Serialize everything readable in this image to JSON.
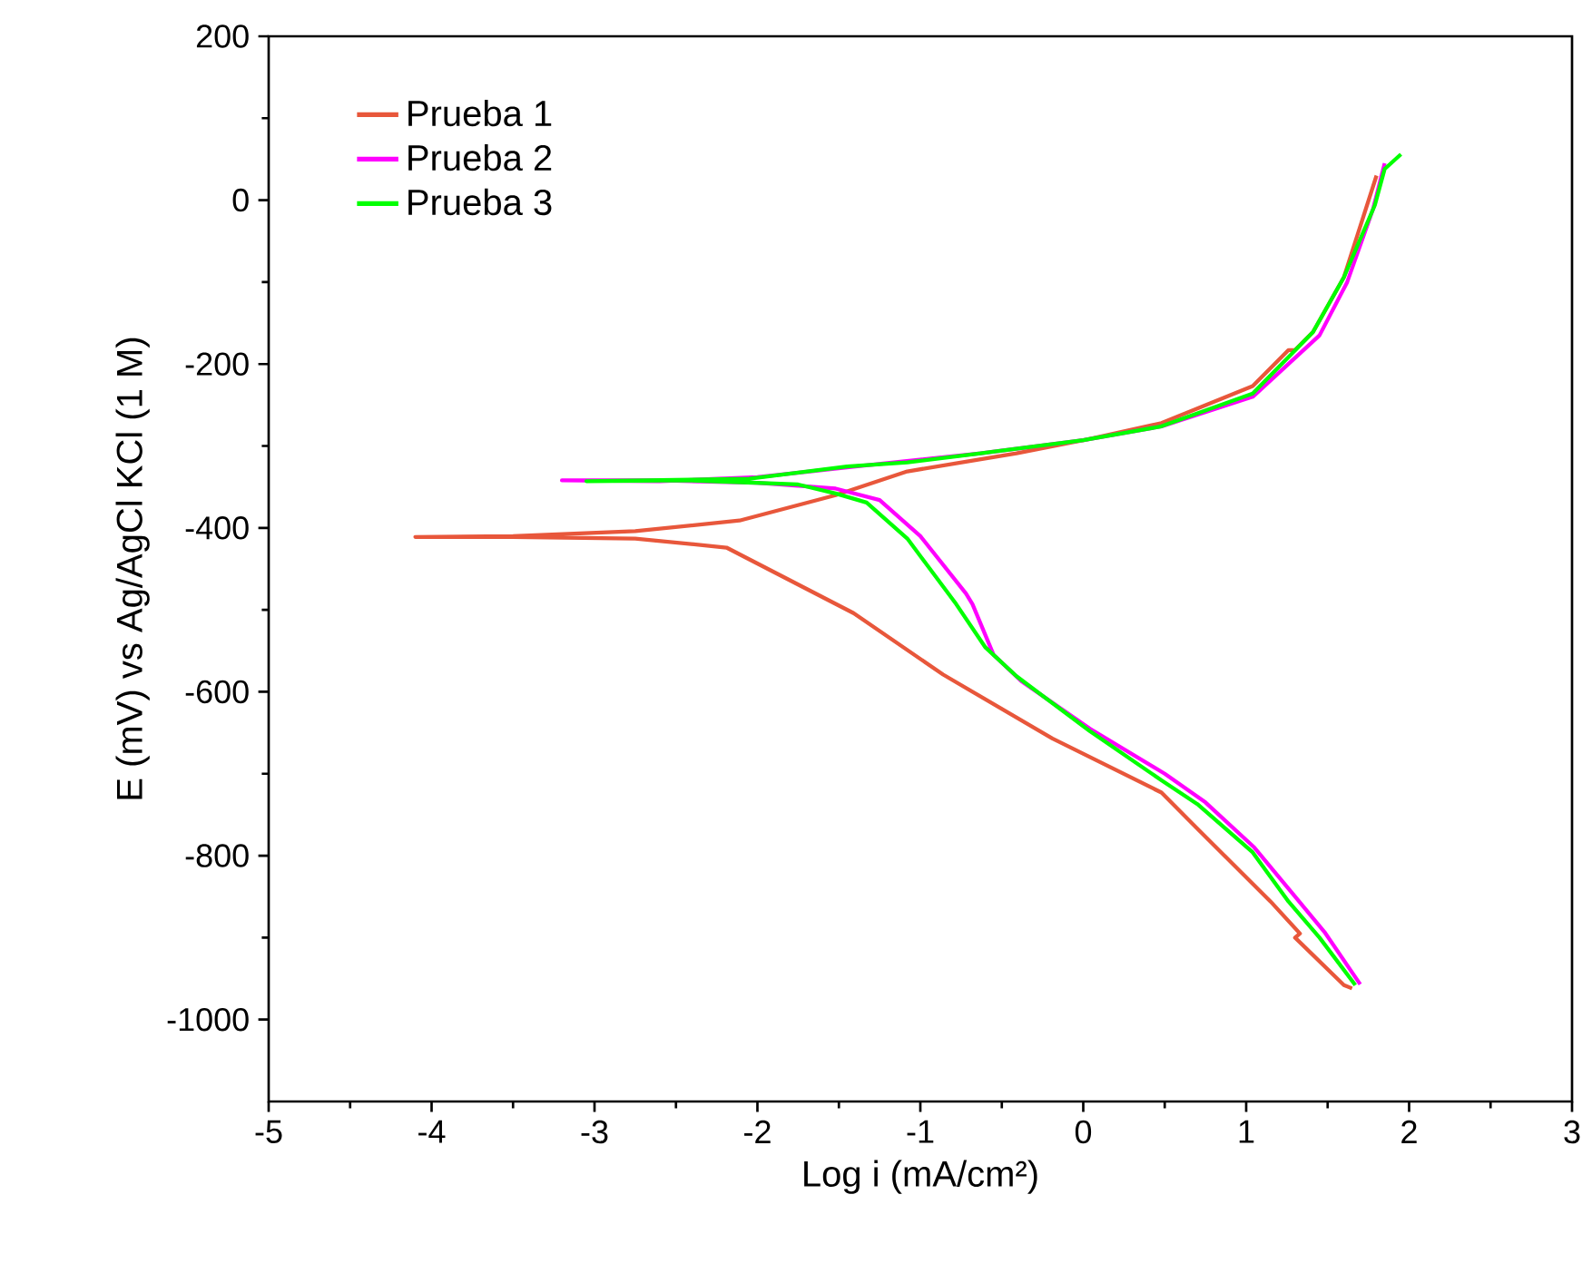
{
  "chart_data": {
    "type": "line",
    "xlabel": "Log i (mA/cm²)",
    "ylabel": "E (mV) vs Ag/AgCl KCl (1 M)",
    "xlim": [
      -5,
      3
    ],
    "ylim": [
      -1100,
      200
    ],
    "xticks": [
      -5,
      -4,
      -3,
      -2,
      -1,
      0,
      1,
      2,
      3
    ],
    "yticks": [
      -1000,
      -800,
      -600,
      -400,
      -200,
      0,
      200
    ],
    "grid": false,
    "legend": "top left",
    "marker": "none",
    "line_style": "solid",
    "series": [
      {
        "name": "Prueba 1",
        "color": "#e8573b",
        "x": [
          1.65,
          1.6,
          1.3,
          1.33,
          1.15,
          0.7,
          0.48,
          -0.19,
          -0.86,
          -1.41,
          -2.19,
          -2.75,
          -3.5,
          -4.1,
          -3.5,
          -2.75,
          -2.11,
          -1.52,
          -1.08,
          -0.41,
          0,
          0.48,
          1.04,
          1.26,
          1.3,
          1.41,
          1.6,
          1.8
        ],
        "values": [
          -962,
          -958,
          -900,
          -895,
          -856,
          -767,
          -723,
          -657,
          -579,
          -504,
          -424,
          -413,
          -411,
          -411,
          -410,
          -404,
          -391,
          -360,
          -331,
          -309,
          -293,
          -272,
          -227,
          -183,
          -183,
          -161,
          -94,
          30
        ]
      },
      {
        "name": "Prueba 2",
        "color": "#ff00ff",
        "x": [
          1.7,
          1.48,
          1.3,
          1.05,
          0.75,
          0.5,
          0.04,
          -0.38,
          -0.55,
          -0.68,
          -0.72,
          -1.0,
          -1.25,
          -1.52,
          -2.0,
          -2.6,
          -3.2,
          -2.6,
          -2.0,
          -1.45,
          -0.63,
          0,
          0.48,
          1.04,
          1.45,
          1.62,
          1.78,
          1.85
        ],
        "values": [
          -957,
          -893,
          -850,
          -790,
          -735,
          -700,
          -645,
          -587,
          -555,
          -493,
          -480,
          -410,
          -366,
          -352,
          -345,
          -342,
          -342,
          -343,
          -338,
          -326,
          -309,
          -293,
          -276,
          -240,
          -165,
          -100,
          -10,
          45
        ]
      },
      {
        "name": "Prueba 3",
        "color": "#00ff00",
        "x": [
          1.67,
          1.45,
          1.26,
          1.04,
          0.7,
          0.48,
          0.04,
          -0.41,
          -0.6,
          -0.78,
          -1.08,
          -1.33,
          -1.52,
          -1.75,
          -2.41,
          -3.05,
          -2.41,
          -2.05,
          -1.45,
          -1.08,
          -0.63,
          0,
          0.48,
          1.04,
          1.41,
          1.6,
          1.79,
          1.85,
          1.95
        ],
        "values": [
          -958,
          -900,
          -856,
          -796,
          -737,
          -708,
          -648,
          -581,
          -546,
          -493,
          -413,
          -369,
          -358,
          -347,
          -342,
          -343,
          -341,
          -340,
          -325,
          -320,
          -309,
          -293,
          -276,
          -236,
          -161,
          -94,
          -6,
          38,
          56
        ]
      }
    ]
  }
}
